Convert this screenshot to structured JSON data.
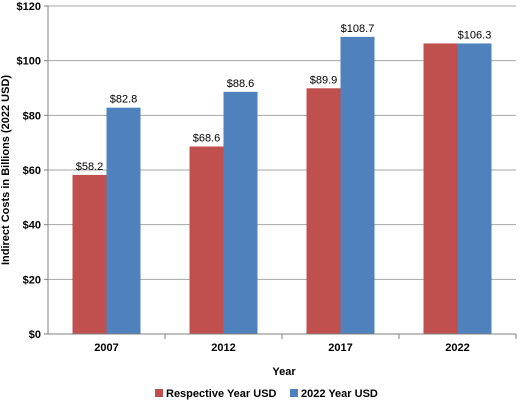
{
  "chart_data": {
    "type": "bar",
    "categories": [
      "2007",
      "2012",
      "2017",
      "2022"
    ],
    "series": [
      {
        "name": "Respective Year USD",
        "color": "#c0504d",
        "values": [
          58.2,
          68.6,
          89.9,
          106.3
        ],
        "labels": [
          "$58.2",
          "$68.6",
          "$89.9",
          ""
        ]
      },
      {
        "name": "2022 Year USD",
        "color": "#4f81bd",
        "values": [
          82.8,
          88.6,
          108.7,
          106.3
        ],
        "labels": [
          "$82.8",
          "$88.6",
          "$108.7",
          "$106.3"
        ]
      }
    ],
    "xlabel": "Year",
    "ylabel": "Indirect Costs in Billions (2022 USD)",
    "ylim": [
      0,
      120
    ],
    "yticks": [
      0,
      20,
      40,
      60,
      80,
      100,
      120
    ],
    "ytick_labels": [
      "$0",
      "$20",
      "$40",
      "$60",
      "$80",
      "$100",
      "$120"
    ],
    "grid": true,
    "legend_position": "bottom"
  }
}
